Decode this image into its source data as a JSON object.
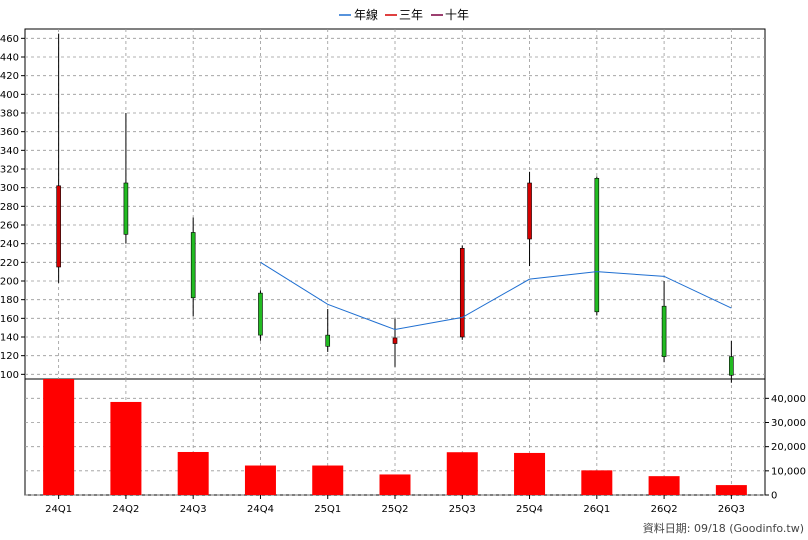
{
  "legend": [
    {
      "label": "年線",
      "color": "#1f6fd1"
    },
    {
      "label": "三年",
      "color": "#d40000"
    },
    {
      "label": "十年",
      "color": "#7a0040"
    }
  ],
  "footer": "資料日期: 09/18  (Goodinfo.tw)",
  "colors": {
    "up": "#d40000",
    "down": "#22bb22",
    "volume": "#ff0000",
    "ma_line": "#1f6fd1",
    "grid": "#999999"
  },
  "chart_data": [
    {
      "type": "candlestick",
      "grid": true,
      "ylim": [
        95,
        470
      ],
      "yticks": [
        100,
        120,
        140,
        160,
        180,
        200,
        220,
        240,
        260,
        280,
        300,
        320,
        340,
        360,
        380,
        400,
        420,
        440,
        460
      ],
      "categories": [
        "24Q1",
        "24Q2",
        "24Q3",
        "24Q4",
        "25Q1",
        "25Q2",
        "25Q3",
        "25Q4",
        "26Q1",
        "26Q2",
        "26Q3"
      ],
      "ohlc": [
        {
          "open": 215,
          "high": 465,
          "low": 198,
          "close": 302
        },
        {
          "open": 305,
          "high": 380,
          "low": 240,
          "close": 250
        },
        {
          "open": 252,
          "high": 268,
          "low": 162,
          "close": 182
        },
        {
          "open": 187,
          "high": 190,
          "low": 136,
          "close": 142
        },
        {
          "open": 142,
          "high": 170,
          "low": 124,
          "close": 130
        },
        {
          "open": 133,
          "high": 160,
          "low": 108,
          "close": 139
        },
        {
          "open": 140,
          "high": 238,
          "low": 137,
          "close": 235
        },
        {
          "open": 245,
          "high": 317,
          "low": 216,
          "close": 305
        },
        {
          "open": 310,
          "high": 312,
          "low": 163,
          "close": 167
        },
        {
          "open": 173,
          "high": 200,
          "low": 113,
          "close": 119
        },
        {
          "open": 119,
          "high": 136,
          "low": 91,
          "close": 99
        }
      ],
      "series": [
        {
          "name": "年線",
          "values": [
            null,
            null,
            null,
            220,
            175,
            148,
            161,
            202,
            210,
            205,
            171
          ]
        }
      ]
    },
    {
      "type": "bar",
      "grid": true,
      "ylim": [
        0,
        48000
      ],
      "yticks": [
        0,
        10000,
        20000,
        30000,
        40000
      ],
      "ytick_labels": [
        "0",
        "10,000",
        "20,000",
        "30,000",
        "40,000"
      ],
      "categories": [
        "24Q1",
        "24Q2",
        "24Q3",
        "24Q4",
        "25Q1",
        "25Q2",
        "25Q3",
        "25Q4",
        "26Q1",
        "26Q2",
        "26Q3"
      ],
      "values": [
        48000,
        38500,
        17800,
        12200,
        12200,
        8500,
        17700,
        17400,
        10200,
        7800,
        4100
      ]
    }
  ]
}
